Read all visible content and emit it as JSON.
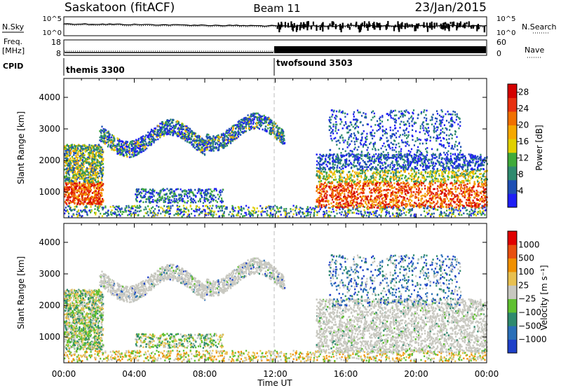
{
  "header": {
    "station": "Saskatoon (fitACF)",
    "beam": "Beam 11",
    "date": "23/Jan/2015"
  },
  "noise_panel": {
    "left_label": "N.Sky",
    "right_label": "N.Search",
    "left_ticks": [
      "10^5",
      "10^0"
    ],
    "right_ticks": [
      "10^5",
      "10^0"
    ]
  },
  "freq_panel": {
    "left_label_1": "Freq.",
    "left_label_2": "[MHz]",
    "right_label": "Nave",
    "left_ticks": [
      "18",
      "8"
    ],
    "right_ticks": [
      "60",
      "0"
    ]
  },
  "cpid": {
    "label": "CPID",
    "modes": [
      {
        "name": "themis 3300"
      },
      {
        "name": "twofsound 3503"
      }
    ]
  },
  "colors": {
    "power": [
      "#1e1ef5",
      "#1e4fb4",
      "#2e8a6e",
      "#3faa3a",
      "#e0d000",
      "#f5a800",
      "#f07000",
      "#e83010",
      "#d40000"
    ],
    "velocity": [
      "#1e40c8",
      "#2a6fb8",
      "#2e8a6e",
      "#5fc030",
      "#c8c8c0",
      "#e8c050",
      "#f09000",
      "#e85010",
      "#e00000"
    ],
    "grey_scatter": "#c8c8c0"
  },
  "chart_data": [
    {
      "type": "heatmap",
      "name": "power",
      "ylabel": "Slant Range [km]",
      "yticks": [
        "1000",
        "2000",
        "3000",
        "4000"
      ],
      "ylim": [
        180,
        4600
      ],
      "colorbar_label": "Power [dB]",
      "colorbar_ticks": [
        "4",
        "8",
        "12",
        "16",
        "20",
        "24",
        "28"
      ],
      "clim": [
        0,
        30
      ]
    },
    {
      "type": "heatmap",
      "name": "velocity",
      "ylabel": "Slant Range [km]",
      "yticks": [
        "1000",
        "2000",
        "3000",
        "4000"
      ],
      "ylim": [
        180,
        4600
      ],
      "colorbar_label": "Velocity [m s⁻¹]",
      "colorbar_ticks": [
        "1000",
        "500",
        "100",
        "25",
        "−25",
        "−100",
        "−500",
        "−1000"
      ]
    }
  ],
  "time_axis": {
    "label": "Time UT",
    "ticks": [
      "00:00",
      "04:00",
      "08:00",
      "12:00",
      "16:00",
      "20:00",
      "00:00"
    ]
  }
}
